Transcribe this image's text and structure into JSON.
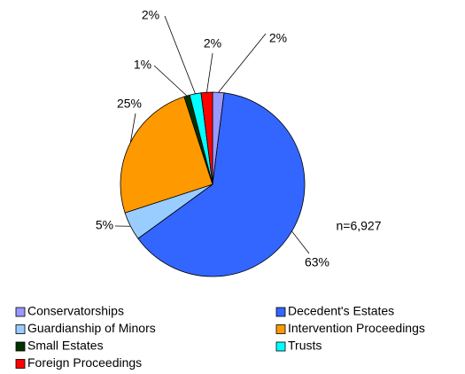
{
  "chart_data": {
    "type": "pie",
    "categories": [
      "Conservatorships",
      "Decedent's Estates",
      "Guardianship of Minors",
      "Intervention Proceedings",
      "Small Estates",
      "Trusts",
      "Foreign Proceedings"
    ],
    "values": [
      2,
      63,
      5,
      25,
      1,
      2,
      2
    ],
    "value_labels": [
      "2%",
      "63%",
      "5%",
      "25%",
      "1%",
      "2%",
      "2%"
    ],
    "colors": [
      "#9999ff",
      "#3366ff",
      "#99ccff",
      "#ff9900",
      "#003300",
      "#00ffff",
      "#ff0000"
    ],
    "annotation": "n=6,927",
    "legend": "bottom"
  }
}
